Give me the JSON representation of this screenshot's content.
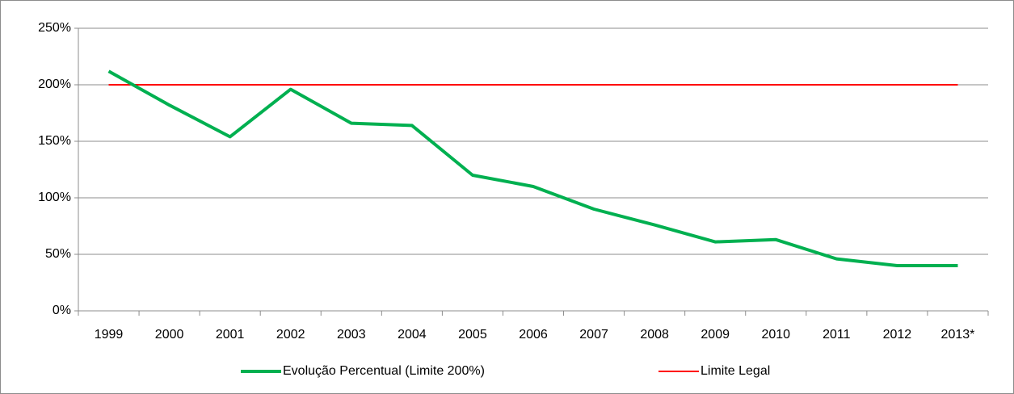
{
  "chart_data": {
    "type": "line",
    "categories": [
      "1999",
      "2000",
      "2001",
      "2002",
      "2003",
      "2004",
      "2005",
      "2006",
      "2007",
      "2008",
      "2009",
      "2010",
      "2011",
      "2012",
      "2013*"
    ],
    "series": [
      {
        "name": "Evolução Percentual (Limite 200%)",
        "color": "#00b050",
        "values": [
          212,
          182,
          154,
          196,
          166,
          164,
          120,
          110,
          90,
          76,
          61,
          63,
          46,
          40,
          40
        ]
      },
      {
        "name": "Limite Legal",
        "color": "#ff0000",
        "values": [
          200,
          200,
          200,
          200,
          200,
          200,
          200,
          200,
          200,
          200,
          200,
          200,
          200,
          200,
          200
        ]
      }
    ],
    "ylim": [
      0,
      250
    ],
    "yticks": [
      {
        "value": 0,
        "label": "0%"
      },
      {
        "value": 50,
        "label": "50%"
      },
      {
        "value": 100,
        "label": "100%"
      },
      {
        "value": 150,
        "label": "150%"
      },
      {
        "value": 200,
        "label": "200%"
      },
      {
        "value": 250,
        "label": "250%"
      }
    ],
    "grid": true,
    "legend": "bottom"
  }
}
